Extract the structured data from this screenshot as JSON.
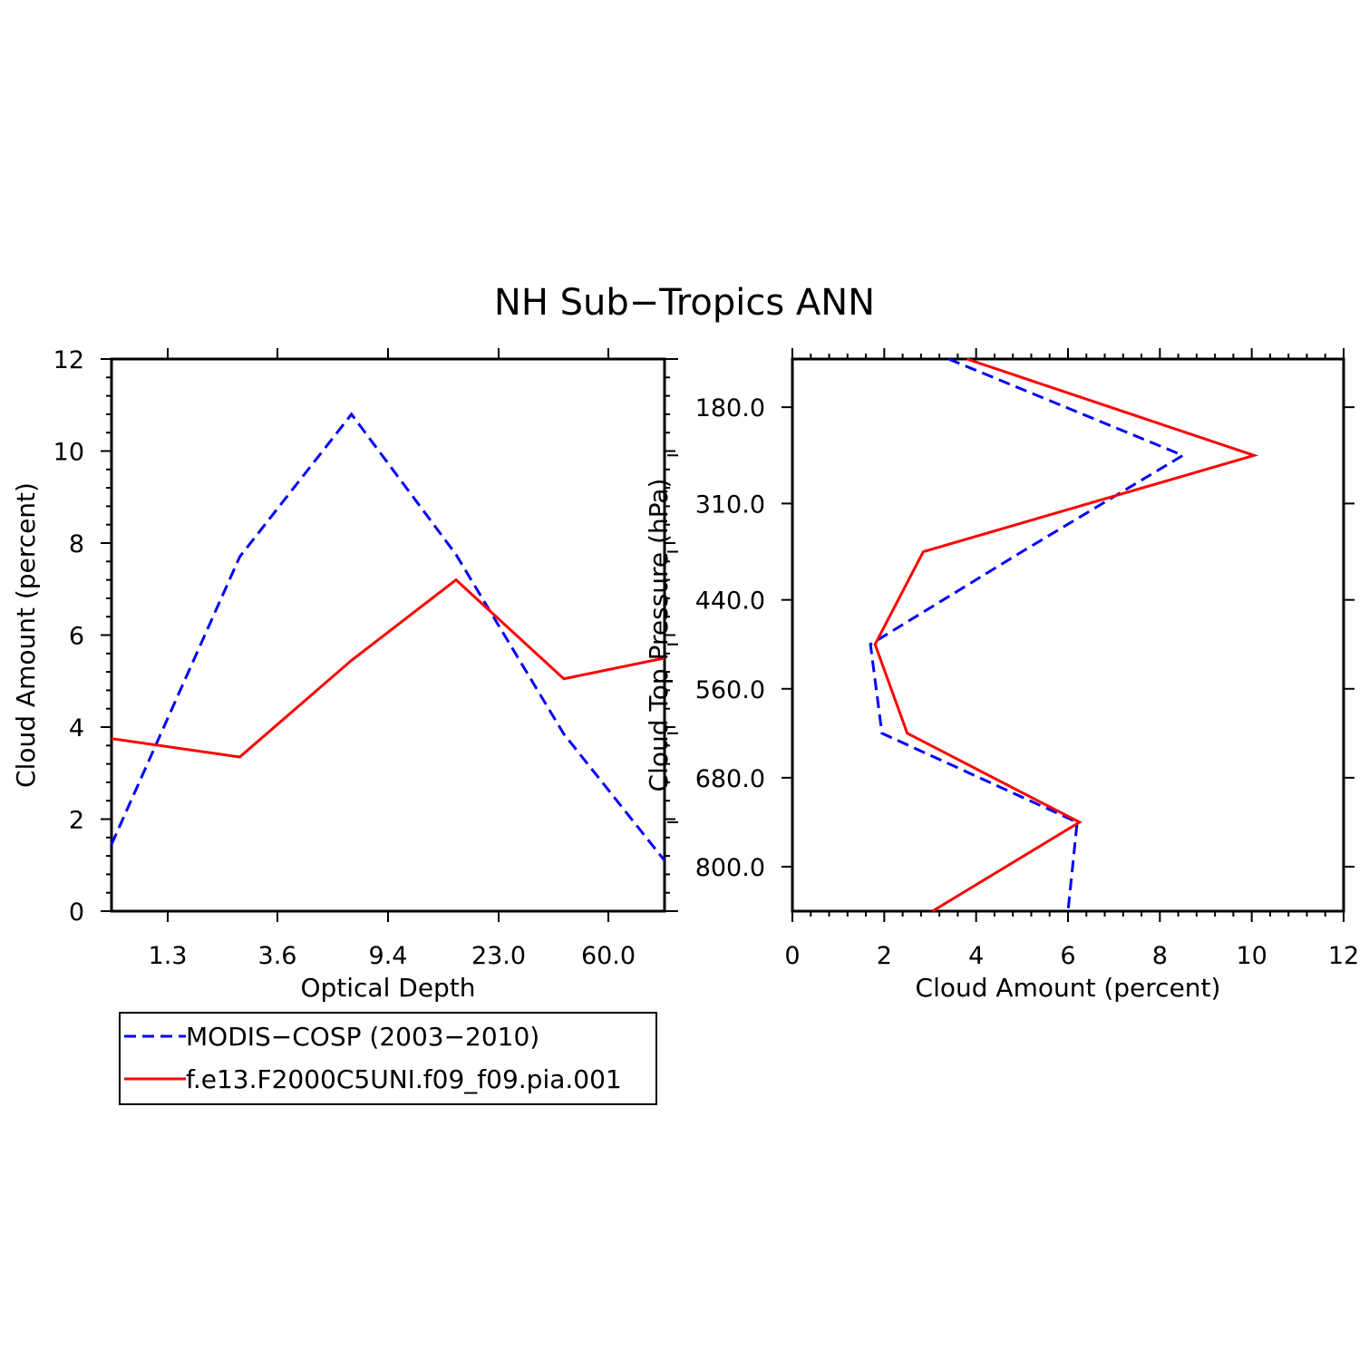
{
  "title": "NH Sub−Tropics ANN",
  "colors": {
    "obs": "#0000ff",
    "model": "#ff0000",
    "axis": "#000000"
  },
  "legend": {
    "placement": "below-left-panel",
    "entries": [
      {
        "label": "MODIS−COSP (2003−2010)",
        "color": "#0000ff",
        "dash": true
      },
      {
        "label": "f.e13.F2000C5UNI.f09_f09.pia.001",
        "color": "#ff0000",
        "dash": false
      }
    ]
  },
  "chart_data": [
    {
      "type": "line",
      "panel": "left",
      "xlabel": "Optical Depth",
      "ylabel": "Cloud Amount (percent)",
      "ylim": [
        0,
        12
      ],
      "yticks": [
        "0",
        "2",
        "4",
        "6",
        "8",
        "10",
        "12"
      ],
      "x_tick_labels": [
        "1.3",
        "3.6",
        "9.4",
        "23.0",
        "60.0"
      ],
      "x": [
        0.8,
        2.45,
        6.5,
        16.2,
        41.5,
        100
      ],
      "series": [
        {
          "name": "MODIS−COSP (2003−2010)",
          "color": "#0000ff",
          "dash": true,
          "values": [
            1.45,
            7.7,
            10.8,
            7.75,
            3.85,
            1.1
          ]
        },
        {
          "name": "f.e13.F2000C5UNI.f09_f09.pia.001",
          "color": "#ff0000",
          "dash": false,
          "values": [
            3.75,
            3.35,
            5.45,
            7.2,
            5.05,
            5.5
          ]
        }
      ]
    },
    {
      "type": "line",
      "panel": "right",
      "xlabel": "Cloud Amount (percent)",
      "ylabel": "Cloud Top Pressure (hPa)",
      "xlim": [
        0,
        12
      ],
      "xticks": [
        "0",
        "2",
        "4",
        "6",
        "8",
        "10",
        "12"
      ],
      "y_tick_labels": [
        "180.0",
        "310.0",
        "440.0",
        "560.0",
        "680.0",
        "800.0"
      ],
      "y": [
        115,
        245,
        375,
        500,
        620,
        740,
        860
      ],
      "series": [
        {
          "name": "MODIS−COSP (2003−2010)",
          "color": "#0000ff",
          "dash": true,
          "values": [
            3.4,
            8.5,
            5.0,
            1.7,
            1.95,
            6.2,
            6.0
          ]
        },
        {
          "name": "f.e13.F2000C5UNI.f09_f09.pia.001",
          "color": "#ff0000",
          "dash": false,
          "values": [
            3.8,
            10.05,
            2.85,
            1.8,
            2.5,
            6.25,
            3.05
          ]
        }
      ]
    }
  ]
}
